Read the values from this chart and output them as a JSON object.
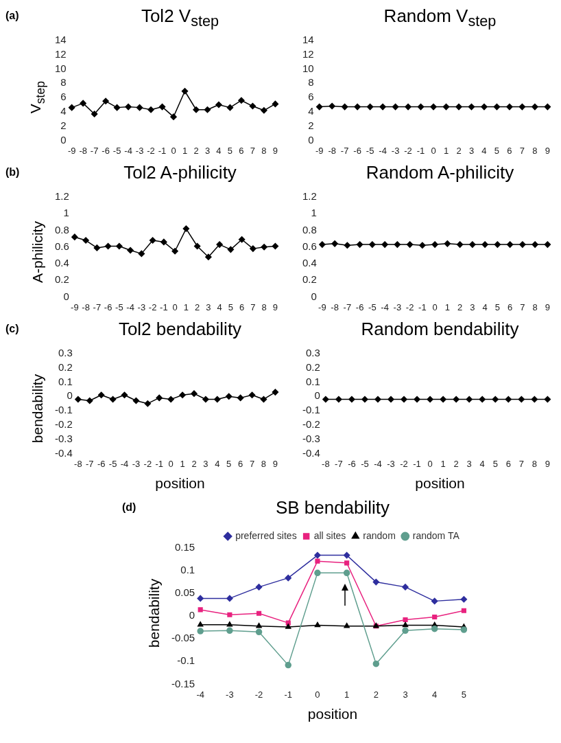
{
  "chart_data": [
    {
      "type": "line",
      "title": "Tol2 V$_{step}$",
      "ylabel": "V$_{step}$",
      "annotations": [
        "(a)"
      ],
      "categories": [
        "-9",
        "-8",
        "-7",
        "-6",
        "-5",
        "-4",
        "-3",
        "-2",
        "-1",
        "0",
        "1",
        "2",
        "3",
        "4",
        "5",
        "6",
        "7",
        "8",
        "9"
      ],
      "ylim": [
        0,
        14
      ],
      "yticks": [
        0,
        2,
        4,
        6,
        8,
        10,
        12,
        14
      ],
      "marker": "diamond",
      "series": [
        {
          "color": "#000000",
          "values": [
            4.6,
            5.2,
            3.7,
            5.5,
            4.6,
            4.7,
            4.6,
            4.3,
            4.7,
            3.3,
            6.9,
            4.3,
            4.3,
            5.0,
            4.6,
            5.6,
            4.8,
            4.2,
            5.1
          ]
        }
      ]
    },
    {
      "type": "line",
      "title": "Random V$_{step}$",
      "categories": [
        "-9",
        "-8",
        "-7",
        "-6",
        "-5",
        "-4",
        "-3",
        "-2",
        "-1",
        "0",
        "1",
        "2",
        "3",
        "4",
        "5",
        "6",
        "7",
        "8",
        "9"
      ],
      "ylim": [
        0,
        14
      ],
      "yticks": [
        0,
        2,
        4,
        6,
        8,
        10,
        12,
        14
      ],
      "marker": "diamond",
      "series": [
        {
          "color": "#000000",
          "values": [
            4.7,
            4.8,
            4.7,
            4.7,
            4.7,
            4.7,
            4.7,
            4.7,
            4.7,
            4.7,
            4.7,
            4.7,
            4.7,
            4.7,
            4.7,
            4.7,
            4.7,
            4.7,
            4.7
          ]
        }
      ]
    },
    {
      "type": "line",
      "title": "Tol2 A-philicity",
      "ylabel": "A-philicity",
      "annotations": [
        "(b)"
      ],
      "categories": [
        "-9",
        "-8",
        "-7",
        "-6",
        "-5",
        "-4",
        "-3",
        "-2",
        "-1",
        "0",
        "1",
        "2",
        "3",
        "4",
        "5",
        "6",
        "7",
        "8",
        "9"
      ],
      "ylim": [
        0,
        1.2
      ],
      "yticks": [
        0,
        0.2,
        0.4,
        0.6,
        0.8,
        1,
        1.2
      ],
      "marker": "diamond",
      "series": [
        {
          "color": "#000000",
          "values": [
            0.72,
            0.68,
            0.59,
            0.61,
            0.61,
            0.56,
            0.52,
            0.68,
            0.66,
            0.55,
            0.82,
            0.61,
            0.48,
            0.63,
            0.57,
            0.69,
            0.58,
            0.6,
            0.61
          ]
        }
      ]
    },
    {
      "type": "line",
      "title": "Random A-philicity",
      "categories": [
        "-9",
        "-8",
        "-7",
        "-6",
        "-5",
        "-4",
        "-3",
        "-2",
        "-1",
        "0",
        "1",
        "2",
        "3",
        "4",
        "5",
        "6",
        "7",
        "8",
        "9"
      ],
      "ylim": [
        0,
        1.2
      ],
      "yticks": [
        0,
        0.2,
        0.4,
        0.6,
        0.8,
        1,
        1.2
      ],
      "marker": "diamond",
      "series": [
        {
          "color": "#000000",
          "values": [
            0.63,
            0.64,
            0.62,
            0.63,
            0.63,
            0.63,
            0.63,
            0.63,
            0.62,
            0.63,
            0.64,
            0.63,
            0.63,
            0.63,
            0.63,
            0.63,
            0.63,
            0.63,
            0.63
          ]
        }
      ]
    },
    {
      "type": "line",
      "title": "Tol2 bendability",
      "ylabel": "bendability",
      "xlabel": "position",
      "annotations": [
        "(c)"
      ],
      "categories": [
        "-8",
        "-7",
        "-6",
        "-5",
        "-4",
        "-3",
        "-2",
        "-1",
        "0",
        "1",
        "2",
        "3",
        "4",
        "5",
        "6",
        "7",
        "8",
        "9"
      ],
      "ylim": [
        -0.4,
        0.3
      ],
      "yticks": [
        -0.4,
        -0.3,
        -0.2,
        -0.1,
        0,
        0.1,
        0.2,
        0.3
      ],
      "marker": "diamond",
      "series": [
        {
          "color": "#000000",
          "values": [
            -0.02,
            -0.03,
            0.01,
            -0.02,
            0.01,
            -0.03,
            -0.05,
            -0.01,
            -0.02,
            0.01,
            0.02,
            -0.02,
            -0.02,
            0.0,
            -0.01,
            0.01,
            -0.02,
            0.03
          ]
        }
      ]
    },
    {
      "type": "line",
      "title": "Random bendability",
      "xlabel": "position",
      "categories": [
        "-8",
        "-7",
        "-6",
        "-5",
        "-4",
        "-3",
        "-2",
        "-1",
        "0",
        "1",
        "2",
        "3",
        "4",
        "5",
        "6",
        "7",
        "8",
        "9"
      ],
      "ylim": [
        -0.4,
        0.3
      ],
      "yticks": [
        -0.4,
        -0.3,
        -0.2,
        -0.1,
        0,
        0.1,
        0.2,
        0.3
      ],
      "marker": "diamond",
      "series": [
        {
          "color": "#000000",
          "values": [
            -0.02,
            -0.02,
            -0.02,
            -0.02,
            -0.02,
            -0.02,
            -0.02,
            -0.02,
            -0.02,
            -0.02,
            -0.02,
            -0.02,
            -0.02,
            -0.02,
            -0.02,
            -0.02,
            -0.02,
            -0.02
          ]
        }
      ]
    },
    {
      "type": "line",
      "title": "SB bendability",
      "ylabel": "bendability",
      "xlabel": "position",
      "annotations": [
        "(d)"
      ],
      "categories": [
        "-4",
        "-3",
        "-2",
        "-1",
        "0",
        "1",
        "2",
        "3",
        "4",
        "5"
      ],
      "ylim": [
        -0.15,
        0.15
      ],
      "yticks": [
        -0.15,
        -0.1,
        -0.05,
        0,
        0.05,
        0.1,
        0.15
      ],
      "legend": "top right",
      "series": [
        {
          "name": "preferred sites",
          "color": "#2e2e9e",
          "marker": "diamond",
          "values": [
            0.039,
            0.039,
            0.064,
            0.084,
            0.134,
            0.134,
            0.075,
            0.064,
            0.033,
            0.037
          ]
        },
        {
          "name": "all sites",
          "color": "#e8227f",
          "marker": "square",
          "values": [
            0.014,
            0.003,
            0.006,
            -0.015,
            0.121,
            0.117,
            -0.022,
            -0.008,
            -0.002,
            0.012
          ]
        },
        {
          "name": "random",
          "color": "#000000",
          "marker": "triangle",
          "values": [
            -0.019,
            -0.019,
            -0.022,
            -0.024,
            -0.02,
            -0.022,
            -0.022,
            -0.02,
            -0.02,
            -0.024
          ]
        },
        {
          "name": "random TA",
          "color": "#5f9e8e",
          "marker": "circle",
          "values": [
            -0.033,
            -0.032,
            -0.035,
            -0.108,
            0.095,
            0.095,
            -0.105,
            -0.032,
            -0.028,
            -0.03
          ]
        }
      ]
    }
  ]
}
